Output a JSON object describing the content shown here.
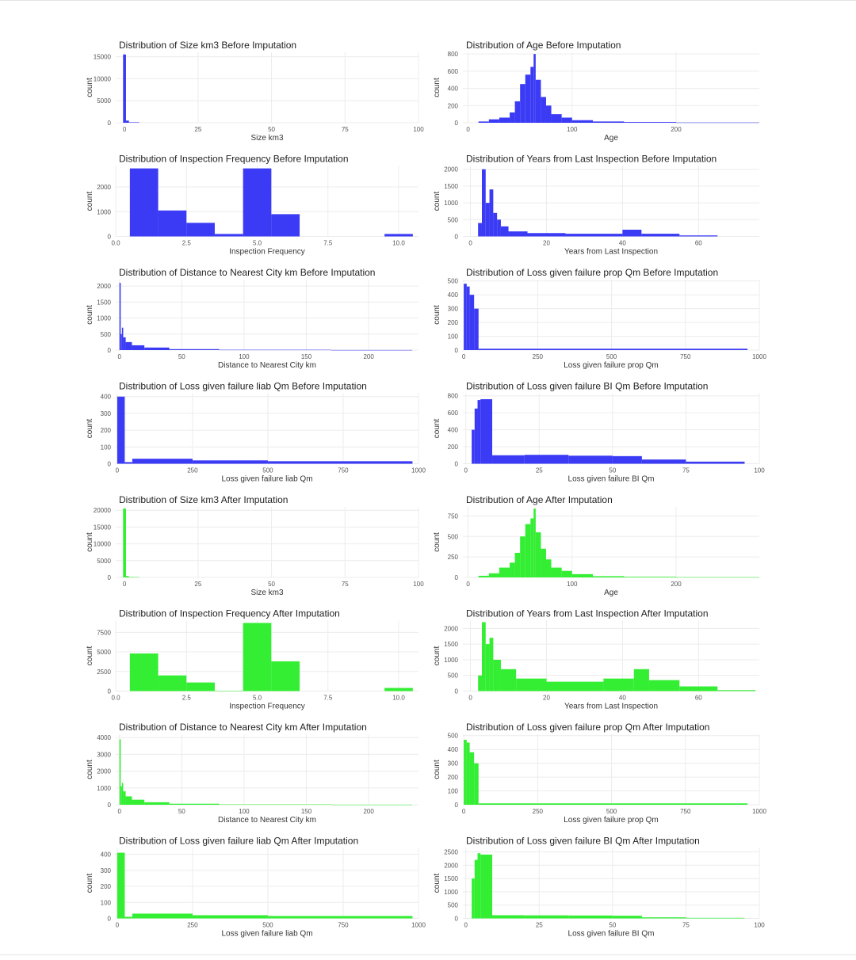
{
  "chart_data": [
    {
      "type": "histogram",
      "title": "Distribution of Size km3 Before Imputation",
      "xlabel": "Size km3",
      "ylabel": "count",
      "xlim": [
        -3,
        100
      ],
      "ylim": [
        0,
        16000
      ],
      "xticks": [
        0,
        25,
        50,
        75,
        100
      ],
      "yticks": [
        0,
        5000,
        10000,
        15000
      ],
      "color": "#3b3bf5",
      "bins": [
        {
          "x0": -0.5,
          "x1": 0.5,
          "count": 15500
        },
        {
          "x0": 0.5,
          "x1": 1.5,
          "count": 500
        },
        {
          "x0": 1.5,
          "x1": 5,
          "count": 100
        }
      ]
    },
    {
      "type": "histogram",
      "title": "Distribution of Age Before Imputation",
      "xlabel": "Age",
      "ylabel": "count",
      "xlim": [
        -5,
        280
      ],
      "ylim": [
        0,
        820
      ],
      "xticks": [
        0,
        100,
        200
      ],
      "yticks": [
        0,
        200,
        400,
        600,
        800
      ],
      "color": "#3b3bf5",
      "bins": [
        {
          "x0": 10,
          "x1": 20,
          "count": 15
        },
        {
          "x0": 20,
          "x1": 30,
          "count": 40
        },
        {
          "x0": 30,
          "x1": 40,
          "count": 60
        },
        {
          "x0": 40,
          "x1": 45,
          "count": 120
        },
        {
          "x0": 45,
          "x1": 50,
          "count": 250
        },
        {
          "x0": 50,
          "x1": 55,
          "count": 450
        },
        {
          "x0": 55,
          "x1": 60,
          "count": 560
        },
        {
          "x0": 60,
          "x1": 63,
          "count": 650
        },
        {
          "x0": 63,
          "x1": 65,
          "count": 800
        },
        {
          "x0": 65,
          "x1": 70,
          "count": 500
        },
        {
          "x0": 70,
          "x1": 75,
          "count": 300
        },
        {
          "x0": 75,
          "x1": 80,
          "count": 200
        },
        {
          "x0": 80,
          "x1": 90,
          "count": 100
        },
        {
          "x0": 90,
          "x1": 100,
          "count": 60
        },
        {
          "x0": 100,
          "x1": 120,
          "count": 30
        },
        {
          "x0": 120,
          "x1": 150,
          "count": 15
        },
        {
          "x0": 150,
          "x1": 200,
          "count": 8
        },
        {
          "x0": 200,
          "x1": 280,
          "count": 3
        }
      ]
    },
    {
      "type": "histogram",
      "title": "Distribution of Inspection Frequency Before Imputation",
      "xlabel": "Inspection Frequency",
      "ylabel": "count",
      "xlim": [
        0,
        10.7
      ],
      "ylim": [
        0,
        2850
      ],
      "xticks": [
        0.0,
        2.5,
        5.0,
        7.5,
        10.0
      ],
      "yticks": [
        0,
        1000,
        2000
      ],
      "color": "#3b3bf5",
      "bins": [
        {
          "x0": 0.5,
          "x1": 1.5,
          "count": 2750
        },
        {
          "x0": 1.5,
          "x1": 2.5,
          "count": 1050
        },
        {
          "x0": 2.5,
          "x1": 3.5,
          "count": 550
        },
        {
          "x0": 3.5,
          "x1": 4.5,
          "count": 100
        },
        {
          "x0": 4.5,
          "x1": 5.5,
          "count": 2750
        },
        {
          "x0": 5.5,
          "x1": 6.5,
          "count": 900
        },
        {
          "x0": 9.5,
          "x1": 10.5,
          "count": 100
        }
      ]
    },
    {
      "type": "histogram",
      "title": "Distribution of Years from Last Inspection Before Imputation",
      "xlabel": "Years from Last Inspection",
      "ylabel": "count",
      "xlim": [
        -2,
        76
      ],
      "ylim": [
        0,
        2100
      ],
      "xticks": [
        0,
        20,
        40,
        60
      ],
      "yticks": [
        0,
        500,
        1000,
        1500,
        2000
      ],
      "color": "#3b3bf5",
      "bins": [
        {
          "x0": 2,
          "x1": 3,
          "count": 400
        },
        {
          "x0": 3,
          "x1": 4,
          "count": 2000
        },
        {
          "x0": 4,
          "x1": 5,
          "count": 1000
        },
        {
          "x0": 5,
          "x1": 6,
          "count": 1400
        },
        {
          "x0": 6,
          "x1": 7,
          "count": 700
        },
        {
          "x0": 7,
          "x1": 8,
          "count": 500
        },
        {
          "x0": 8,
          "x1": 10,
          "count": 300
        },
        {
          "x0": 10,
          "x1": 15,
          "count": 150
        },
        {
          "x0": 15,
          "x1": 25,
          "count": 100
        },
        {
          "x0": 25,
          "x1": 40,
          "count": 80
        },
        {
          "x0": 40,
          "x1": 45,
          "count": 200
        },
        {
          "x0": 45,
          "x1": 55,
          "count": 80
        },
        {
          "x0": 55,
          "x1": 65,
          "count": 30
        }
      ]
    },
    {
      "type": "histogram",
      "title": "Distribution of Distance to Nearest City km Before Imputation",
      "xlabel": "Distance to Nearest City km",
      "ylabel": "count",
      "xlim": [
        -3,
        240
      ],
      "ylim": [
        0,
        2200
      ],
      "xticks": [
        0,
        50,
        100,
        150,
        200
      ],
      "yticks": [
        0,
        500,
        1000,
        1500,
        2000
      ],
      "color": "#3b3bf5",
      "bins": [
        {
          "x0": 0,
          "x1": 1,
          "count": 2100
        },
        {
          "x0": 1,
          "x1": 2,
          "count": 500
        },
        {
          "x0": 2,
          "x1": 3,
          "count": 700
        },
        {
          "x0": 3,
          "x1": 5,
          "count": 400
        },
        {
          "x0": 5,
          "x1": 10,
          "count": 250
        },
        {
          "x0": 10,
          "x1": 20,
          "count": 150
        },
        {
          "x0": 20,
          "x1": 40,
          "count": 80
        },
        {
          "x0": 40,
          "x1": 80,
          "count": 30
        },
        {
          "x0": 80,
          "x1": 170,
          "count": 10
        },
        {
          "x0": 170,
          "x1": 235,
          "count": 3
        }
      ]
    },
    {
      "type": "histogram",
      "title": "Distribution of Loss given failure prop Qm Before Imputation",
      "xlabel": "Loss given failure prop Qm",
      "ylabel": "count",
      "xlim": [
        -3,
        1000
      ],
      "ylim": [
        0,
        510
      ],
      "xticks": [
        0,
        250,
        500,
        750,
        1000
      ],
      "yticks": [
        0,
        100,
        200,
        300,
        400,
        500
      ],
      "color": "#3b3bf5",
      "bins": [
        {
          "x0": 0,
          "x1": 10,
          "count": 480
        },
        {
          "x0": 10,
          "x1": 20,
          "count": 460
        },
        {
          "x0": 20,
          "x1": 35,
          "count": 400
        },
        {
          "x0": 35,
          "x1": 50,
          "count": 300
        },
        {
          "x0": 50,
          "x1": 960,
          "count": 10
        }
      ]
    },
    {
      "type": "histogram",
      "title": "Distribution of Loss given failure liab Qm Before Imputation",
      "xlabel": "Loss given failure liab Qm",
      "ylabel": "count",
      "xlim": [
        -5,
        1000
      ],
      "ylim": [
        0,
        420
      ],
      "xticks": [
        0,
        250,
        500,
        750,
        1000
      ],
      "yticks": [
        0,
        100,
        200,
        300,
        400
      ],
      "color": "#3b3bf5",
      "bins": [
        {
          "x0": 0,
          "x1": 25,
          "count": 400
        },
        {
          "x0": 25,
          "x1": 50,
          "count": 10
        },
        {
          "x0": 50,
          "x1": 250,
          "count": 30
        },
        {
          "x0": 250,
          "x1": 500,
          "count": 20
        },
        {
          "x0": 500,
          "x1": 980,
          "count": 15
        }
      ]
    },
    {
      "type": "histogram",
      "title": "Distribution of Loss given failure BI Qm Before Imputation",
      "xlabel": "Loss given failure BI Qm",
      "ylabel": "count",
      "xlim": [
        -1,
        100
      ],
      "ylim": [
        0,
        830
      ],
      "xticks": [
        0,
        25,
        50,
        75,
        100
      ],
      "yticks": [
        0,
        200,
        400,
        600,
        800
      ],
      "color": "#3b3bf5",
      "bins": [
        {
          "x0": 2,
          "x1": 3,
          "count": 400
        },
        {
          "x0": 3,
          "x1": 4,
          "count": 650
        },
        {
          "x0": 4,
          "x1": 5,
          "count": 750
        },
        {
          "x0": 5,
          "x1": 9,
          "count": 760
        },
        {
          "x0": 9,
          "x1": 20,
          "count": 100
        },
        {
          "x0": 20,
          "x1": 35,
          "count": 105
        },
        {
          "x0": 35,
          "x1": 50,
          "count": 95
        },
        {
          "x0": 50,
          "x1": 60,
          "count": 90
        },
        {
          "x0": 60,
          "x1": 75,
          "count": 50
        },
        {
          "x0": 75,
          "x1": 95,
          "count": 25
        }
      ]
    },
    {
      "type": "histogram",
      "title": "Distribution of Size km3 After Imputation",
      "xlabel": "Size km3",
      "ylabel": "count",
      "xlim": [
        -3,
        100
      ],
      "ylim": [
        0,
        21000
      ],
      "xticks": [
        0,
        25,
        50,
        75,
        100
      ],
      "yticks": [
        0,
        5000,
        10000,
        15000,
        20000
      ],
      "color": "#33ee33",
      "bins": [
        {
          "x0": -0.5,
          "x1": 0.5,
          "count": 20500
        },
        {
          "x0": 0.5,
          "x1": 1.5,
          "count": 400
        },
        {
          "x0": 1.5,
          "x1": 5,
          "count": 100
        }
      ]
    },
    {
      "type": "histogram",
      "title": "Distribution of Age After Imputation",
      "xlabel": "Age",
      "ylabel": "count",
      "xlim": [
        -5,
        280
      ],
      "ylim": [
        0,
        860
      ],
      "xticks": [
        0,
        100,
        200
      ],
      "yticks": [
        0,
        250,
        500,
        750
      ],
      "color": "#33ee33",
      "bins": [
        {
          "x0": 10,
          "x1": 20,
          "count": 20
        },
        {
          "x0": 20,
          "x1": 30,
          "count": 50
        },
        {
          "x0": 30,
          "x1": 40,
          "count": 120
        },
        {
          "x0": 40,
          "x1": 45,
          "count": 180
        },
        {
          "x0": 45,
          "x1": 50,
          "count": 300
        },
        {
          "x0": 50,
          "x1": 55,
          "count": 500
        },
        {
          "x0": 55,
          "x1": 60,
          "count": 650
        },
        {
          "x0": 60,
          "x1": 63,
          "count": 720
        },
        {
          "x0": 63,
          "x1": 65,
          "count": 840
        },
        {
          "x0": 65,
          "x1": 70,
          "count": 550
        },
        {
          "x0": 70,
          "x1": 75,
          "count": 350
        },
        {
          "x0": 75,
          "x1": 80,
          "count": 220
        },
        {
          "x0": 80,
          "x1": 90,
          "count": 120
        },
        {
          "x0": 90,
          "x1": 100,
          "count": 80
        },
        {
          "x0": 100,
          "x1": 120,
          "count": 40
        },
        {
          "x0": 120,
          "x1": 150,
          "count": 15
        },
        {
          "x0": 150,
          "x1": 200,
          "count": 8
        },
        {
          "x0": 200,
          "x1": 280,
          "count": 3
        }
      ]
    },
    {
      "type": "histogram",
      "title": "Distribution of Inspection Frequency After Imputation",
      "xlabel": "Inspection Frequency",
      "ylabel": "count",
      "xlim": [
        0,
        10.7
      ],
      "ylim": [
        0,
        9000
      ],
      "xticks": [
        0.0,
        2.5,
        5.0,
        7.5,
        10.0
      ],
      "yticks": [
        0,
        2500,
        5000,
        7500
      ],
      "color": "#33ee33",
      "bins": [
        {
          "x0": 0.5,
          "x1": 1.5,
          "count": 4800
        },
        {
          "x0": 1.5,
          "x1": 2.5,
          "count": 2000
        },
        {
          "x0": 2.5,
          "x1": 3.5,
          "count": 1100
        },
        {
          "x0": 3.5,
          "x1": 4.5,
          "count": 50
        },
        {
          "x0": 4.5,
          "x1": 5.5,
          "count": 8700
        },
        {
          "x0": 5.5,
          "x1": 6.5,
          "count": 3800
        },
        {
          "x0": 9.5,
          "x1": 10.5,
          "count": 400
        }
      ]
    },
    {
      "type": "histogram",
      "title": "Distribution of Years from Last Inspection After Imputation",
      "xlabel": "Years from Last Inspection",
      "ylabel": "count",
      "xlim": [
        -2,
        76
      ],
      "ylim": [
        0,
        2250
      ],
      "xticks": [
        0,
        20,
        40,
        60
      ],
      "yticks": [
        0,
        500,
        1000,
        1500,
        2000
      ],
      "color": "#33ee33",
      "bins": [
        {
          "x0": 2,
          "x1": 3,
          "count": 500
        },
        {
          "x0": 3,
          "x1": 4,
          "count": 2200
        },
        {
          "x0": 4,
          "x1": 5,
          "count": 1500
        },
        {
          "x0": 5,
          "x1": 6,
          "count": 1700
        },
        {
          "x0": 6,
          "x1": 8,
          "count": 1000
        },
        {
          "x0": 8,
          "x1": 12,
          "count": 700
        },
        {
          "x0": 12,
          "x1": 20,
          "count": 400
        },
        {
          "x0": 20,
          "x1": 35,
          "count": 300
        },
        {
          "x0": 35,
          "x1": 43,
          "count": 400
        },
        {
          "x0": 43,
          "x1": 47,
          "count": 700
        },
        {
          "x0": 47,
          "x1": 55,
          "count": 350
        },
        {
          "x0": 55,
          "x1": 65,
          "count": 150
        },
        {
          "x0": 65,
          "x1": 75,
          "count": 30
        }
      ]
    },
    {
      "type": "histogram",
      "title": "Distribution of Distance to Nearest City km After Imputation",
      "xlabel": "Distance to Nearest City km",
      "ylabel": "count",
      "xlim": [
        -3,
        240
      ],
      "ylim": [
        0,
        4200
      ],
      "xticks": [
        0,
        50,
        100,
        150,
        200
      ],
      "yticks": [
        0,
        1000,
        2000,
        3000,
        4000
      ],
      "color": "#33ee33",
      "bins": [
        {
          "x0": 0,
          "x1": 1,
          "count": 3900
        },
        {
          "x0": 1,
          "x1": 2,
          "count": 1100
        },
        {
          "x0": 2,
          "x1": 3,
          "count": 1300
        },
        {
          "x0": 3,
          "x1": 5,
          "count": 800
        },
        {
          "x0": 5,
          "x1": 10,
          "count": 500
        },
        {
          "x0": 10,
          "x1": 20,
          "count": 300
        },
        {
          "x0": 20,
          "x1": 40,
          "count": 150
        },
        {
          "x0": 40,
          "x1": 80,
          "count": 60
        },
        {
          "x0": 80,
          "x1": 170,
          "count": 20
        },
        {
          "x0": 170,
          "x1": 235,
          "count": 5
        }
      ]
    },
    {
      "type": "histogram",
      "title": "Distribution of Loss given failure prop Qm After Imputation",
      "xlabel": "Loss given failure prop Qm",
      "ylabel": "count",
      "xlim": [
        -3,
        1000
      ],
      "ylim": [
        0,
        510
      ],
      "xticks": [
        0,
        250,
        500,
        750,
        1000
      ],
      "yticks": [
        0,
        100,
        200,
        300,
        400,
        500
      ],
      "color": "#33ee33",
      "bins": [
        {
          "x0": 0,
          "x1": 10,
          "count": 470
        },
        {
          "x0": 10,
          "x1": 20,
          "count": 450
        },
        {
          "x0": 20,
          "x1": 35,
          "count": 380
        },
        {
          "x0": 35,
          "x1": 50,
          "count": 300
        },
        {
          "x0": 50,
          "x1": 960,
          "count": 10
        }
      ]
    },
    {
      "type": "histogram",
      "title": "Distribution of Loss given failure liab Qm After Imputation",
      "xlabel": "Loss given failure liab Qm",
      "ylabel": "count",
      "xlim": [
        -5,
        1000
      ],
      "ylim": [
        0,
        440
      ],
      "xticks": [
        0,
        250,
        500,
        750,
        1000
      ],
      "yticks": [
        0,
        100,
        200,
        300,
        400
      ],
      "color": "#33ee33",
      "bins": [
        {
          "x0": 0,
          "x1": 25,
          "count": 410
        },
        {
          "x0": 25,
          "x1": 50,
          "count": 10
        },
        {
          "x0": 50,
          "x1": 250,
          "count": 30
        },
        {
          "x0": 250,
          "x1": 500,
          "count": 20
        },
        {
          "x0": 500,
          "x1": 980,
          "count": 15
        }
      ]
    },
    {
      "type": "histogram",
      "title": "Distribution of Loss given failure BI Qm After Imputation",
      "xlabel": "Loss given failure BI Qm",
      "ylabel": "count",
      "xlim": [
        -1,
        100
      ],
      "ylim": [
        0,
        2650
      ],
      "xticks": [
        0,
        25,
        50,
        75,
        100
      ],
      "yticks": [
        0,
        500,
        1000,
        1500,
        2000,
        2500
      ],
      "color": "#33ee33",
      "bins": [
        {
          "x0": 2,
          "x1": 3,
          "count": 1500
        },
        {
          "x0": 3,
          "x1": 4,
          "count": 2200
        },
        {
          "x0": 4,
          "x1": 5,
          "count": 2450
        },
        {
          "x0": 5,
          "x1": 9,
          "count": 2400
        },
        {
          "x0": 9,
          "x1": 20,
          "count": 120
        },
        {
          "x0": 20,
          "x1": 35,
          "count": 115
        },
        {
          "x0": 35,
          "x1": 50,
          "count": 110
        },
        {
          "x0": 50,
          "x1": 60,
          "count": 100
        },
        {
          "x0": 60,
          "x1": 75,
          "count": 40
        },
        {
          "x0": 75,
          "x1": 95,
          "count": 20
        }
      ]
    }
  ]
}
